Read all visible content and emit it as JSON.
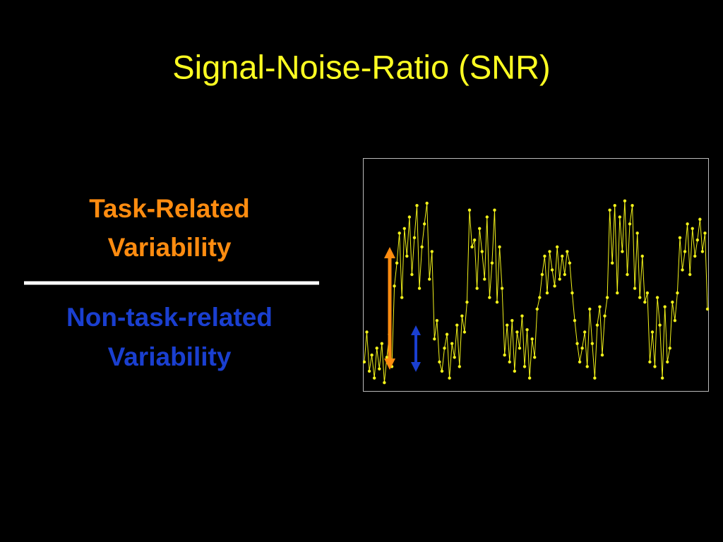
{
  "chart_data": {
    "type": "line",
    "title": "Signal-Noise-Ratio (SNR)",
    "annotations": [
      "Task-Related",
      "Variability",
      "Non-task-related",
      "Variability"
    ],
    "color": "#f2f21a",
    "ylim": [
      0,
      100
    ],
    "values": [
      12,
      25,
      8,
      15,
      5,
      18,
      9,
      20,
      3,
      14,
      24,
      10,
      45,
      55,
      68,
      40,
      70,
      58,
      75,
      50,
      66,
      80,
      44,
      62,
      72,
      81,
      48,
      60,
      22,
      30,
      12,
      8,
      18,
      24,
      5,
      20,
      14,
      28,
      10,
      32,
      25,
      38,
      78,
      62,
      65,
      44,
      70,
      60,
      48,
      75,
      40,
      55,
      78,
      38,
      62,
      44,
      15,
      28,
      12,
      30,
      8,
      25,
      18,
      32,
      10,
      26,
      5,
      22,
      14,
      35,
      40,
      50,
      58,
      42,
      60,
      52,
      45,
      62,
      48,
      58,
      50,
      60,
      55,
      42,
      30,
      20,
      12,
      18,
      25,
      10,
      35,
      20,
      5,
      28,
      36,
      15,
      32,
      40,
      78,
      55,
      80,
      42,
      75,
      60,
      82,
      50,
      72,
      80,
      44,
      68,
      40,
      58,
      38,
      42,
      12,
      25,
      10,
      40,
      28,
      5,
      36,
      12,
      18,
      38,
      30,
      42,
      66,
      52,
      60,
      72,
      50,
      70,
      58,
      65,
      74,
      60,
      68,
      35
    ]
  }
}
